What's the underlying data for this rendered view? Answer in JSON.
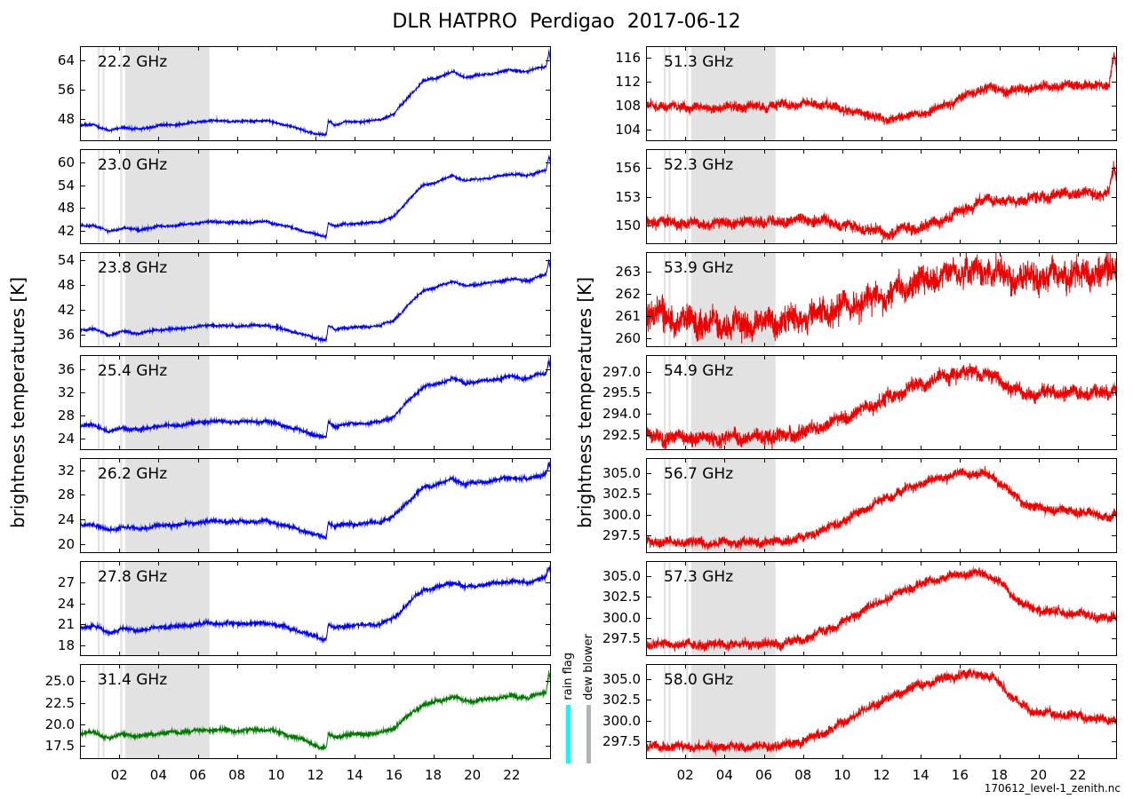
{
  "title": "DLR HATPRO  Perdigao  2017-06-12",
  "ylabel_left": "brightness temperatures [K]",
  "ylabel_right": "brightness temperatures [K]",
  "footer": "170612_level-1_zenith.nc",
  "legend": {
    "rain_label": "rain flag",
    "rain_color": "#00ffff",
    "dew_label": "dew blower",
    "dew_color": "#b3b3b3"
  },
  "band_color": "#e2e2e2",
  "flags": {
    "dew_blower_bands": [
      [
        0.9,
        1.0
      ],
      [
        1.15,
        1.25
      ],
      [
        2.05,
        2.15
      ],
      [
        2.3,
        6.6
      ]
    ],
    "rain_bands": []
  },
  "xlim": [
    0,
    24
  ],
  "xticks": {
    "values": [
      2,
      4,
      6,
      8,
      10,
      12,
      14,
      16,
      18,
      20,
      22
    ],
    "labels": [
      "02",
      "04",
      "06",
      "08",
      "10",
      "12",
      "14",
      "16",
      "18",
      "20",
      "22"
    ]
  },
  "chart_data": [
    {
      "type": "line",
      "label": "22.2 GHz",
      "column": "left",
      "color": "#0000ee",
      "ylim": [
        42,
        68
      ],
      "noise": 0.18,
      "ytick_values": [
        48,
        56,
        64
      ],
      "ytick_labels": [
        "48",
        "56",
        "64"
      ],
      "t": [
        0,
        0.7,
        1.5,
        2.2,
        3,
        4,
        5,
        6.5,
        8,
        9.5,
        10.5,
        11.5,
        12.2,
        12.55,
        12.65,
        13,
        13.5,
        14.5,
        15.3,
        16,
        16.8,
        17.5,
        18,
        19,
        19.6,
        20.3,
        21,
        22,
        22.8,
        23.3,
        23.75,
        23.9,
        24
      ],
      "v": [
        46.2,
        46.5,
        44.8,
        45.8,
        45.2,
        46.3,
        46.5,
        47.6,
        47.4,
        47.6,
        46.4,
        44.8,
        43.8,
        43.6,
        47.6,
        46.4,
        47.2,
        47.4,
        47.8,
        49.5,
        54.5,
        58.5,
        59,
        61,
        59.5,
        60,
        60.5,
        61.5,
        61,
        62,
        62.5,
        66.5,
        63.5
      ]
    },
    {
      "type": "line",
      "label": "23.0 GHz",
      "column": "left",
      "color": "#0000ee",
      "ylim": [
        38.5,
        63.5
      ],
      "noise": 0.18,
      "ytick_values": [
        42,
        48,
        54,
        60
      ],
      "ytick_labels": [
        "42",
        "48",
        "54",
        "60"
      ],
      "t": [
        0,
        0.7,
        1.5,
        2.2,
        3,
        4,
        5,
        6.5,
        8,
        9.5,
        10.5,
        11.5,
        12.2,
        12.55,
        12.65,
        13,
        13.5,
        14.5,
        15.3,
        16,
        16.8,
        17.5,
        18,
        19,
        19.6,
        20.3,
        21,
        22,
        22.8,
        23.3,
        23.75,
        23.9,
        24
      ],
      "v": [
        43.2,
        43.5,
        41.8,
        42.8,
        42.2,
        43.2,
        43.4,
        44.4,
        44.2,
        44.4,
        43.2,
        41.8,
        40.8,
        40.6,
        44.2,
        43.2,
        43.8,
        44,
        44.4,
        45.8,
        50.5,
        54,
        54.5,
        56.5,
        55.2,
        55.6,
        56,
        57,
        56.5,
        57.5,
        58,
        61.5,
        59
      ]
    },
    {
      "type": "line",
      "label": "23.8 GHz",
      "column": "left",
      "color": "#0000ee",
      "ylim": [
        33,
        56
      ],
      "noise": 0.18,
      "ytick_values": [
        36,
        42,
        48,
        54
      ],
      "ytick_labels": [
        "36",
        "42",
        "48",
        "54"
      ],
      "t": [
        0,
        0.7,
        1.5,
        2.2,
        3,
        4,
        5,
        6.5,
        8,
        9.5,
        10.5,
        11.5,
        12.2,
        12.55,
        12.65,
        13,
        13.5,
        14.5,
        15.3,
        16,
        16.8,
        17.5,
        18,
        19,
        19.6,
        20.3,
        21,
        22,
        22.8,
        23.3,
        23.75,
        23.9,
        24
      ],
      "v": [
        37.2,
        37.4,
        35.9,
        36.8,
        36.3,
        37.2,
        37.4,
        38.3,
        38.1,
        38.3,
        37.2,
        35.9,
        35,
        34.8,
        38.1,
        37.2,
        37.7,
        37.9,
        38.2,
        39.5,
        43.5,
        46.8,
        47.2,
        49,
        47.8,
        48.2,
        48.6,
        49.5,
        49,
        50,
        50.5,
        53.8,
        51.5
      ]
    },
    {
      "type": "line",
      "label": "25.4 GHz",
      "column": "left",
      "color": "#0000ee",
      "ylim": [
        22,
        38.5
      ],
      "noise": 0.18,
      "ytick_values": [
        24,
        28,
        32,
        36
      ],
      "ytick_labels": [
        "24",
        "28",
        "32",
        "36"
      ],
      "t": [
        0,
        0.7,
        1.5,
        2.2,
        3,
        4,
        5,
        6.5,
        8,
        9.5,
        10.5,
        11.5,
        12.2,
        12.55,
        12.65,
        13,
        13.5,
        14.5,
        15.3,
        16,
        16.8,
        17.5,
        18,
        19,
        19.6,
        20.3,
        21,
        22,
        22.8,
        23.3,
        23.75,
        23.9,
        24
      ],
      "v": [
        26.2,
        26.4,
        25.2,
        25.9,
        25.5,
        26.2,
        26.3,
        27,
        26.9,
        27,
        26.2,
        25.1,
        24.4,
        24.2,
        26.8,
        26.1,
        26.5,
        26.6,
        26.9,
        27.9,
        30.8,
        33,
        33.3,
        34.5,
        33.6,
        33.9,
        34.2,
        34.8,
        34.4,
        35.1,
        35.4,
        37.4,
        36
      ]
    },
    {
      "type": "line",
      "label": "26.2 GHz",
      "column": "left",
      "color": "#0000ee",
      "ylim": [
        18.5,
        34
      ],
      "noise": 0.18,
      "ytick_values": [
        20,
        24,
        28,
        32
      ],
      "ytick_labels": [
        "20",
        "24",
        "28",
        "32"
      ],
      "t": [
        0,
        0.7,
        1.5,
        2.2,
        3,
        4,
        5,
        6.5,
        8,
        9.5,
        10.5,
        11.5,
        12.2,
        12.55,
        12.65,
        13,
        13.5,
        14.5,
        15.3,
        16,
        16.8,
        17.5,
        18,
        19,
        19.6,
        20.3,
        21,
        22,
        22.8,
        23.3,
        23.75,
        23.9,
        24
      ],
      "v": [
        23,
        23.2,
        22.1,
        22.8,
        22.4,
        23,
        23.1,
        23.7,
        23.6,
        23.7,
        23,
        22,
        21.3,
        21.1,
        23.5,
        22.9,
        23.2,
        23.3,
        23.6,
        24.5,
        27.2,
        29.2,
        29.5,
        30.6,
        29.8,
        30,
        30.3,
        30.9,
        30.5,
        31.1,
        31.4,
        33.2,
        32
      ]
    },
    {
      "type": "line",
      "label": "27.8 GHz",
      "column": "left",
      "color": "#0000ee",
      "ylim": [
        16.5,
        30
      ],
      "noise": 0.17,
      "ytick_values": [
        18,
        21,
        24,
        27
      ],
      "ytick_labels": [
        "18",
        "21",
        "24",
        "27"
      ],
      "t": [
        0,
        0.7,
        1.5,
        2.2,
        3,
        4,
        5,
        6.5,
        8,
        9.5,
        10.5,
        11.5,
        12.2,
        12.55,
        12.65,
        13,
        13.5,
        14.5,
        15.3,
        16,
        16.8,
        17.5,
        18,
        19,
        19.6,
        20.3,
        21,
        22,
        22.8,
        23.3,
        23.75,
        23.9,
        24
      ],
      "v": [
        20.6,
        20.8,
        19.8,
        20.4,
        20.1,
        20.6,
        20.7,
        21.2,
        21.1,
        21.2,
        20.6,
        19.7,
        19.1,
        18.9,
        21,
        20.5,
        20.8,
        20.9,
        21.1,
        21.9,
        24.2,
        25.9,
        26.1,
        27,
        26.3,
        26.5,
        26.8,
        27.2,
        26.9,
        27.4,
        27.6,
        29.2,
        28.2
      ]
    },
    {
      "type": "line",
      "label": "31.4 GHz",
      "column": "left",
      "color": "#007700",
      "ylim": [
        16,
        27
      ],
      "noise": 0.15,
      "ytick_values": [
        17.5,
        20,
        22.5,
        25
      ],
      "ytick_labels": [
        "17.5",
        "20.0",
        "22.5",
        "25.0"
      ],
      "t": [
        0,
        0.7,
        1.5,
        2.2,
        3,
        4,
        5,
        6.5,
        8,
        9.5,
        10.5,
        11.5,
        12.2,
        12.55,
        12.65,
        13,
        13.5,
        14.5,
        15.3,
        16,
        16.8,
        17.5,
        18,
        19,
        19.6,
        20.3,
        21,
        22,
        22.8,
        23.3,
        23.75,
        23.9,
        24
      ],
      "v": [
        19,
        19.1,
        18.4,
        18.9,
        18.6,
        19,
        19.1,
        19.4,
        19.3,
        19.4,
        18.9,
        18.1,
        17.4,
        17.2,
        18.9,
        18.5,
        18.8,
        18.9,
        19,
        19.6,
        21.2,
        22.3,
        22.5,
        23.2,
        22.7,
        22.8,
        23,
        23.3,
        23.1,
        23.5,
        23.6,
        26.2,
        24.8
      ]
    },
    {
      "type": "line",
      "label": "51.3 GHz",
      "column": "right",
      "color": "#ee0000",
      "ylim": [
        102,
        118
      ],
      "noise": 0.45,
      "ytick_values": [
        104,
        108,
        112,
        116
      ],
      "ytick_labels": [
        "104",
        "108",
        "112",
        "116"
      ],
      "t": [
        0,
        1,
        2,
        3,
        4,
        5,
        6,
        7,
        8,
        9,
        10,
        11,
        11.8,
        12.3,
        12.8,
        13.5,
        14,
        15,
        16,
        16.5,
        17,
        17.5,
        18,
        18.5,
        19,
        19.5,
        20,
        21,
        22,
        23,
        23.6,
        23.85,
        24
      ],
      "v": [
        108,
        107.9,
        107.7,
        107.6,
        107.7,
        107.8,
        107.9,
        108.1,
        108.3,
        108.2,
        107.4,
        106.6,
        106.2,
        105,
        106.3,
        106.2,
        106.6,
        107.6,
        109.2,
        110,
        110.6,
        111,
        110.7,
        110.3,
        110.6,
        110.9,
        111,
        111.3,
        111.5,
        111.2,
        111.6,
        117,
        113.5
      ]
    },
    {
      "type": "line",
      "label": "52.3 GHz",
      "column": "right",
      "color": "#ee0000",
      "ylim": [
        148,
        158
      ],
      "noise": 0.35,
      "ytick_values": [
        150,
        153,
        156
      ],
      "ytick_labels": [
        "150",
        "153",
        "156"
      ],
      "t": [
        0,
        1,
        2,
        3,
        4,
        5,
        6,
        7,
        8,
        9,
        10,
        11,
        11.8,
        12.3,
        12.8,
        13.5,
        14,
        15,
        16,
        16.5,
        17,
        17.5,
        18,
        18.5,
        19,
        19.5,
        20,
        21,
        22,
        23,
        23.6,
        23.85,
        24
      ],
      "v": [
        150.4,
        150.3,
        150.2,
        150.1,
        150.2,
        150.3,
        150.3,
        150.4,
        150.6,
        150.5,
        150,
        149.6,
        149.4,
        148.9,
        149.6,
        149.6,
        149.8,
        150.4,
        151.4,
        151.9,
        152.4,
        152.8,
        152.6,
        152.4,
        152.6,
        152.8,
        152.9,
        153.2,
        153.4,
        153.2,
        153.5,
        156.3,
        154.8
      ]
    },
    {
      "type": "line",
      "label": "53.9 GHz",
      "column": "right",
      "color": "#ee0000",
      "ylim": [
        259.6,
        263.9
      ],
      "noise": 0.38,
      "ytick_values": [
        260,
        261,
        262,
        263
      ],
      "ytick_labels": [
        "260",
        "261",
        "262",
        "263"
      ],
      "t": [
        0,
        1,
        2,
        3,
        4,
        5,
        6,
        7,
        8,
        9,
        10,
        11,
        11.8,
        12.3,
        12.8,
        13.5,
        14,
        15,
        16,
        16.5,
        17,
        17.5,
        18,
        18.5,
        19,
        19.5,
        20,
        21,
        22,
        23,
        23.6,
        23.85,
        24
      ],
      "v": [
        261.1,
        261,
        260.8,
        260.7,
        260.6,
        260.6,
        260.7,
        260.8,
        260.9,
        261.1,
        261.4,
        261.7,
        261.9,
        262,
        262.2,
        262.4,
        262.5,
        262.8,
        263,
        263,
        263.1,
        263,
        262.9,
        262.8,
        262.7,
        262.7,
        262.8,
        262.9,
        262.9,
        263,
        263,
        263.3,
        263.1
      ]
    },
    {
      "type": "line",
      "label": "54.9 GHz",
      "column": "right",
      "color": "#ee0000",
      "ylim": [
        291.4,
        298.2
      ],
      "noise": 0.32,
      "ytick_values": [
        292.5,
        294,
        295.5,
        297
      ],
      "ytick_labels": [
        "292.5",
        "294.0",
        "295.5",
        "297.0"
      ],
      "t": [
        0,
        1,
        2,
        3,
        4,
        5,
        6,
        7,
        8,
        9,
        10,
        11,
        11.8,
        12.3,
        12.8,
        13.5,
        14,
        15,
        16,
        16.5,
        17,
        17.5,
        18,
        18.5,
        19,
        19.5,
        20,
        21,
        22,
        23,
        23.6,
        23.85,
        24
      ],
      "v": [
        292.4,
        292.3,
        292.3,
        292.2,
        292.3,
        292.3,
        292.3,
        292.4,
        292.7,
        293.1,
        293.6,
        294.3,
        294.8,
        295.1,
        295.4,
        295.9,
        296.1,
        296.6,
        296.9,
        297,
        297,
        296.8,
        296.4,
        295.9,
        295.6,
        295.4,
        295.4,
        295.6,
        295.5,
        295.5,
        295.5,
        295.9,
        295.7
      ]
    },
    {
      "type": "line",
      "label": "56.7 GHz",
      "column": "right",
      "color": "#ee0000",
      "ylim": [
        295.4,
        306.8
      ],
      "noise": 0.32,
      "ytick_values": [
        297.5,
        300,
        302.5,
        305
      ],
      "ytick_labels": [
        "297.5",
        "300.0",
        "302.5",
        "305.0"
      ],
      "t": [
        0,
        1,
        2,
        3,
        4,
        5,
        6,
        7,
        8,
        9,
        10,
        11,
        11.8,
        12.3,
        12.8,
        13.5,
        14,
        15,
        16,
        16.5,
        17,
        17.5,
        18,
        18.5,
        19,
        19.5,
        20,
        21,
        22,
        23,
        23.6,
        23.85,
        24
      ],
      "v": [
        296.8,
        296.7,
        296.7,
        296.6,
        296.7,
        296.7,
        296.7,
        296.8,
        297.3,
        298.1,
        299.2,
        300.5,
        301.5,
        302,
        302.6,
        303.3,
        303.7,
        304.4,
        304.9,
        305,
        305,
        304.7,
        304,
        302.8,
        301.8,
        301.1,
        300.8,
        300.6,
        300.4,
        300,
        299.7,
        300,
        299.8
      ]
    },
    {
      "type": "line",
      "label": "57.3 GHz",
      "column": "right",
      "color": "#ee0000",
      "ylim": [
        295.4,
        306.8
      ],
      "noise": 0.32,
      "ytick_values": [
        297.5,
        300,
        302.5,
        305
      ],
      "ytick_labels": [
        "297.5",
        "300.0",
        "302.5",
        "305.0"
      ],
      "t": [
        0,
        1,
        2,
        3,
        4,
        5,
        6,
        7,
        8,
        9,
        10,
        11,
        11.8,
        12.3,
        12.8,
        13.5,
        14,
        15,
        16,
        16.5,
        17,
        17.5,
        18,
        18.5,
        19,
        19.5,
        20,
        21,
        22,
        23,
        23.6,
        23.85,
        24
      ],
      "v": [
        296.9,
        296.8,
        296.8,
        296.7,
        296.8,
        296.8,
        296.8,
        296.9,
        297.4,
        298.3,
        299.4,
        300.8,
        301.8,
        302.3,
        302.9,
        303.6,
        304,
        304.7,
        305.2,
        305.3,
        305.3,
        305,
        304.3,
        303,
        302,
        301.2,
        300.9,
        300.7,
        300.5,
        300.1,
        299.8,
        300.1,
        299.9
      ]
    },
    {
      "type": "line",
      "label": "58.0 GHz",
      "column": "right",
      "color": "#ee0000",
      "ylim": [
        295.4,
        306.8
      ],
      "noise": 0.32,
      "ytick_values": [
        297.5,
        300,
        302.5,
        305
      ],
      "ytick_labels": [
        "297.5",
        "300.0",
        "302.5",
        "305.0"
      ],
      "t": [
        0,
        1,
        2,
        3,
        4,
        5,
        6,
        7,
        8,
        9,
        10,
        11,
        11.8,
        12.3,
        12.8,
        13.5,
        14,
        15,
        16,
        16.5,
        17,
        17.5,
        18,
        18.5,
        19,
        19.5,
        20,
        21,
        22,
        23,
        23.6,
        23.85,
        24
      ],
      "v": [
        297,
        296.9,
        296.9,
        296.8,
        296.9,
        296.9,
        296.9,
        297,
        297.5,
        298.5,
        299.7,
        301.1,
        302.1,
        302.6,
        303.2,
        303.9,
        304.3,
        305,
        305.5,
        305.6,
        305.6,
        305.3,
        304.5,
        303.2,
        302.1,
        301.3,
        301,
        300.8,
        300.6,
        300.2,
        299.9,
        300.2,
        300
      ]
    }
  ]
}
